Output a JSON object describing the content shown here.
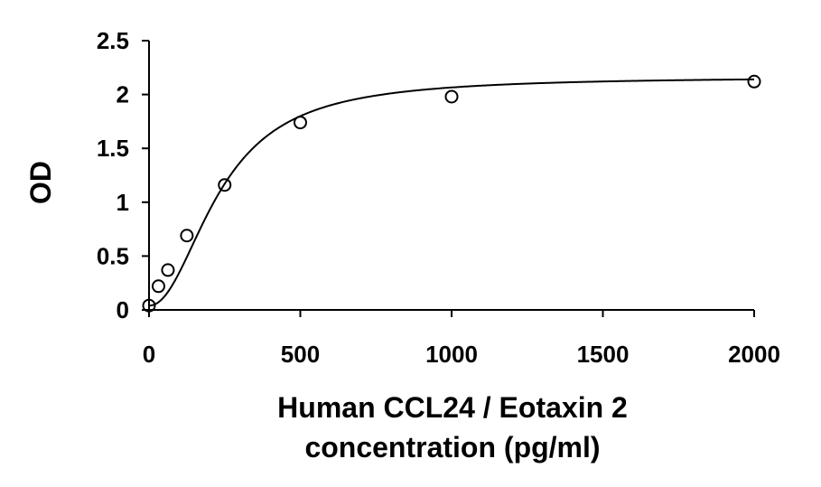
{
  "chart_data": {
    "type": "scatter",
    "xlabel": [
      "Human CCL24 / Eotaxin 2",
      "concentration (pg/ml)"
    ],
    "ylabel": "OD",
    "xlim": [
      0,
      2000
    ],
    "ylim": [
      0,
      2.5
    ],
    "x_ticks": [
      "0",
      "500",
      "1000",
      "1500",
      "2000"
    ],
    "y_ticks": [
      "0",
      "0.5",
      "1",
      "1.5",
      "2",
      "2.5"
    ],
    "grid": false,
    "legend": "none",
    "series": [
      {
        "marker": "open-circle",
        "points": [
          {
            "x": 0,
            "y": 0.04
          },
          {
            "x": 31.25,
            "y": 0.22
          },
          {
            "x": 62.5,
            "y": 0.37
          },
          {
            "x": 125,
            "y": 0.69
          },
          {
            "x": 250,
            "y": 1.16
          },
          {
            "x": 500,
            "y": 1.74
          },
          {
            "x": 1000,
            "y": 1.98
          },
          {
            "x": 2000,
            "y": 2.12
          }
        ]
      }
    ],
    "fit_curve": {
      "type": "4PL",
      "a": 0.04,
      "b": 2.08,
      "c": 235,
      "d": 2.165
    },
    "colors": {
      "axis": "#000000",
      "marker": "#000000",
      "curve": "#000000",
      "background": "#ffffff"
    }
  }
}
